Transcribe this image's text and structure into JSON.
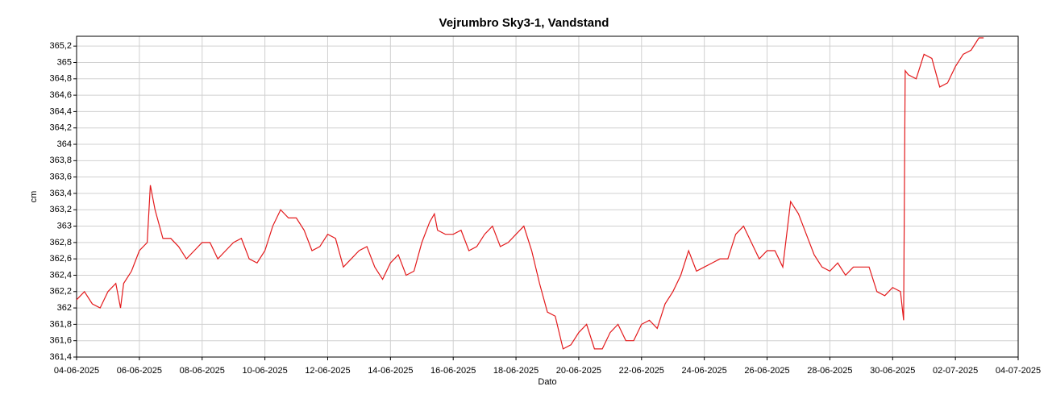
{
  "chart_data": {
    "type": "line",
    "title": "Vejrumbro Sky3-1, Vandstand",
    "xlabel": "Dato",
    "ylabel": "cm",
    "x": [
      "2025-06-04T00:00",
      "2025-06-04T06:00",
      "2025-06-04T12:00",
      "2025-06-04T18:00",
      "2025-06-05T00:00",
      "2025-06-05T06:00",
      "2025-06-05T09:36",
      "2025-06-05T12:00",
      "2025-06-05T18:00",
      "2025-06-06T00:00",
      "2025-06-06T06:00",
      "2025-06-06T08:24",
      "2025-06-06T12:00",
      "2025-06-06T18:00",
      "2025-06-07T00:00",
      "2025-06-07T06:00",
      "2025-06-07T12:00",
      "2025-06-07T18:00",
      "2025-06-08T00:00",
      "2025-06-08T06:00",
      "2025-06-08T12:00",
      "2025-06-08T18:00",
      "2025-06-09T00:00",
      "2025-06-09T06:00",
      "2025-06-09T12:00",
      "2025-06-09T18:00",
      "2025-06-10T00:00",
      "2025-06-10T06:00",
      "2025-06-10T12:00",
      "2025-06-10T18:00",
      "2025-06-11T00:00",
      "2025-06-11T06:00",
      "2025-06-11T12:00",
      "2025-06-11T18:00",
      "2025-06-12T00:00",
      "2025-06-12T06:00",
      "2025-06-12T12:00",
      "2025-06-12T18:00",
      "2025-06-13T00:00",
      "2025-06-13T06:00",
      "2025-06-13T12:00",
      "2025-06-13T18:00",
      "2025-06-14T00:00",
      "2025-06-14T06:00",
      "2025-06-14T12:00",
      "2025-06-14T18:00",
      "2025-06-15T00:00",
      "2025-06-15T06:00",
      "2025-06-15T09:36",
      "2025-06-15T12:00",
      "2025-06-15T18:00",
      "2025-06-16T00:00",
      "2025-06-16T06:00",
      "2025-06-16T12:00",
      "2025-06-16T18:00",
      "2025-06-17T00:00",
      "2025-06-17T06:00",
      "2025-06-17T12:00",
      "2025-06-17T18:00",
      "2025-06-18T00:00",
      "2025-06-18T06:00",
      "2025-06-18T12:00",
      "2025-06-18T18:00",
      "2025-06-19T00:00",
      "2025-06-19T06:00",
      "2025-06-19T12:00",
      "2025-06-19T18:00",
      "2025-06-20T00:00",
      "2025-06-20T06:00",
      "2025-06-20T12:00",
      "2025-06-20T18:00",
      "2025-06-21T00:00",
      "2025-06-21T06:00",
      "2025-06-21T12:00",
      "2025-06-21T18:00",
      "2025-06-22T00:00",
      "2025-06-22T06:00",
      "2025-06-22T12:00",
      "2025-06-22T18:00",
      "2025-06-23T00:00",
      "2025-06-23T06:00",
      "2025-06-23T12:00",
      "2025-06-23T18:00",
      "2025-06-24T00:00",
      "2025-06-24T06:00",
      "2025-06-24T12:00",
      "2025-06-24T18:00",
      "2025-06-25T00:00",
      "2025-06-25T06:00",
      "2025-06-25T12:00",
      "2025-06-25T18:00",
      "2025-06-26T00:00",
      "2025-06-26T06:00",
      "2025-06-26T12:00",
      "2025-06-26T18:00",
      "2025-06-27T00:00",
      "2025-06-27T06:00",
      "2025-06-27T12:00",
      "2025-06-27T18:00",
      "2025-06-28T00:00",
      "2025-06-28T06:00",
      "2025-06-28T12:00",
      "2025-06-28T18:00",
      "2025-06-29T00:00",
      "2025-06-29T06:00",
      "2025-06-29T12:00",
      "2025-06-29T18:00",
      "2025-06-30T00:00",
      "2025-06-30T06:00",
      "2025-06-30T08:24",
      "2025-06-30T09:36",
      "2025-06-30T12:00",
      "2025-06-30T18:00",
      "2025-07-01T00:00",
      "2025-07-01T06:00",
      "2025-07-01T12:00",
      "2025-07-01T18:00",
      "2025-07-02T00:00",
      "2025-07-02T06:00",
      "2025-07-02T12:00",
      "2025-07-02T18:00",
      "2025-07-02T21:36"
    ],
    "series": [
      {
        "name": "Vandstand",
        "color": "#e31a1c",
        "values": [
          362.1,
          362.2,
          362.05,
          362.0,
          362.2,
          362.3,
          362.0,
          362.3,
          362.45,
          362.7,
          362.8,
          363.5,
          363.2,
          362.85,
          362.85,
          362.75,
          362.6,
          362.7,
          362.8,
          362.8,
          362.6,
          362.7,
          362.8,
          362.85,
          362.6,
          362.55,
          362.7,
          363.0,
          363.2,
          363.1,
          363.1,
          362.95,
          362.7,
          362.75,
          362.9,
          362.85,
          362.5,
          362.6,
          362.7,
          362.75,
          362.5,
          362.35,
          362.55,
          362.65,
          362.4,
          362.45,
          362.8,
          363.05,
          363.15,
          362.95,
          362.9,
          362.9,
          362.95,
          362.7,
          362.75,
          362.9,
          363.0,
          362.75,
          362.8,
          362.9,
          363.0,
          362.7,
          362.3,
          361.95,
          361.9,
          361.5,
          361.55,
          361.7,
          361.8,
          361.5,
          361.5,
          361.7,
          361.8,
          361.6,
          361.6,
          361.8,
          361.85,
          361.75,
          362.05,
          362.2,
          362.4,
          362.7,
          362.45,
          362.5,
          362.55,
          362.6,
          362.6,
          362.9,
          363.0,
          362.8,
          362.6,
          362.7,
          362.7,
          362.5,
          363.3,
          363.15,
          362.9,
          362.65,
          362.5,
          362.45,
          362.55,
          362.4,
          362.5,
          362.5,
          362.5,
          362.2,
          362.15,
          362.25,
          362.2,
          361.85,
          364.9,
          364.85,
          364.8,
          365.1,
          365.05,
          364.7,
          364.75,
          364.95,
          365.1,
          365.15,
          365.3,
          365.3
        ]
      }
    ],
    "xlim": [
      "2025-06-04",
      "2025-07-04"
    ],
    "xticks": [
      {
        "value": "2025-06-04",
        "label": "04-06-2025"
      },
      {
        "value": "2025-06-06",
        "label": "06-06-2025"
      },
      {
        "value": "2025-06-08",
        "label": "08-06-2025"
      },
      {
        "value": "2025-06-10",
        "label": "10-06-2025"
      },
      {
        "value": "2025-06-12",
        "label": "12-06-2025"
      },
      {
        "value": "2025-06-14",
        "label": "14-06-2025"
      },
      {
        "value": "2025-06-16",
        "label": "16-06-2025"
      },
      {
        "value": "2025-06-18",
        "label": "18-06-2025"
      },
      {
        "value": "2025-06-20",
        "label": "20-06-2025"
      },
      {
        "value": "2025-06-22",
        "label": "22-06-2025"
      },
      {
        "value": "2025-06-24",
        "label": "24-06-2025"
      },
      {
        "value": "2025-06-26",
        "label": "26-06-2025"
      },
      {
        "value": "2025-06-28",
        "label": "28-06-2025"
      },
      {
        "value": "2025-06-30",
        "label": "30-06-2025"
      },
      {
        "value": "2025-07-02",
        "label": "02-07-2025"
      },
      {
        "value": "2025-07-04",
        "label": "04-07-2025"
      }
    ],
    "ylim": [
      361.4,
      365.32
    ],
    "yticks": [
      {
        "value": 361.4,
        "label": "361,4"
      },
      {
        "value": 361.6,
        "label": "361,6"
      },
      {
        "value": 361.8,
        "label": "361,8"
      },
      362,
      {
        "value": 362.2,
        "label": "362,2"
      },
      {
        "value": 362.4,
        "label": "362,4"
      },
      {
        "value": 362.6,
        "label": "362,6"
      },
      {
        "value": 362.8,
        "label": "362,8"
      },
      363,
      {
        "value": 363.2,
        "label": "363,2"
      },
      {
        "value": 363.4,
        "label": "363,4"
      },
      {
        "value": 363.6,
        "label": "363,6"
      },
      {
        "value": 363.8,
        "label": "363,8"
      },
      364,
      {
        "value": 364.2,
        "label": "364,2"
      },
      {
        "value": 364.4,
        "label": "364,4"
      },
      {
        "value": 364.6,
        "label": "364,6"
      },
      {
        "value": 364.8,
        "label": "364,8"
      },
      365,
      {
        "value": 365.2,
        "label": "365,2"
      }
    ],
    "grid": true
  }
}
